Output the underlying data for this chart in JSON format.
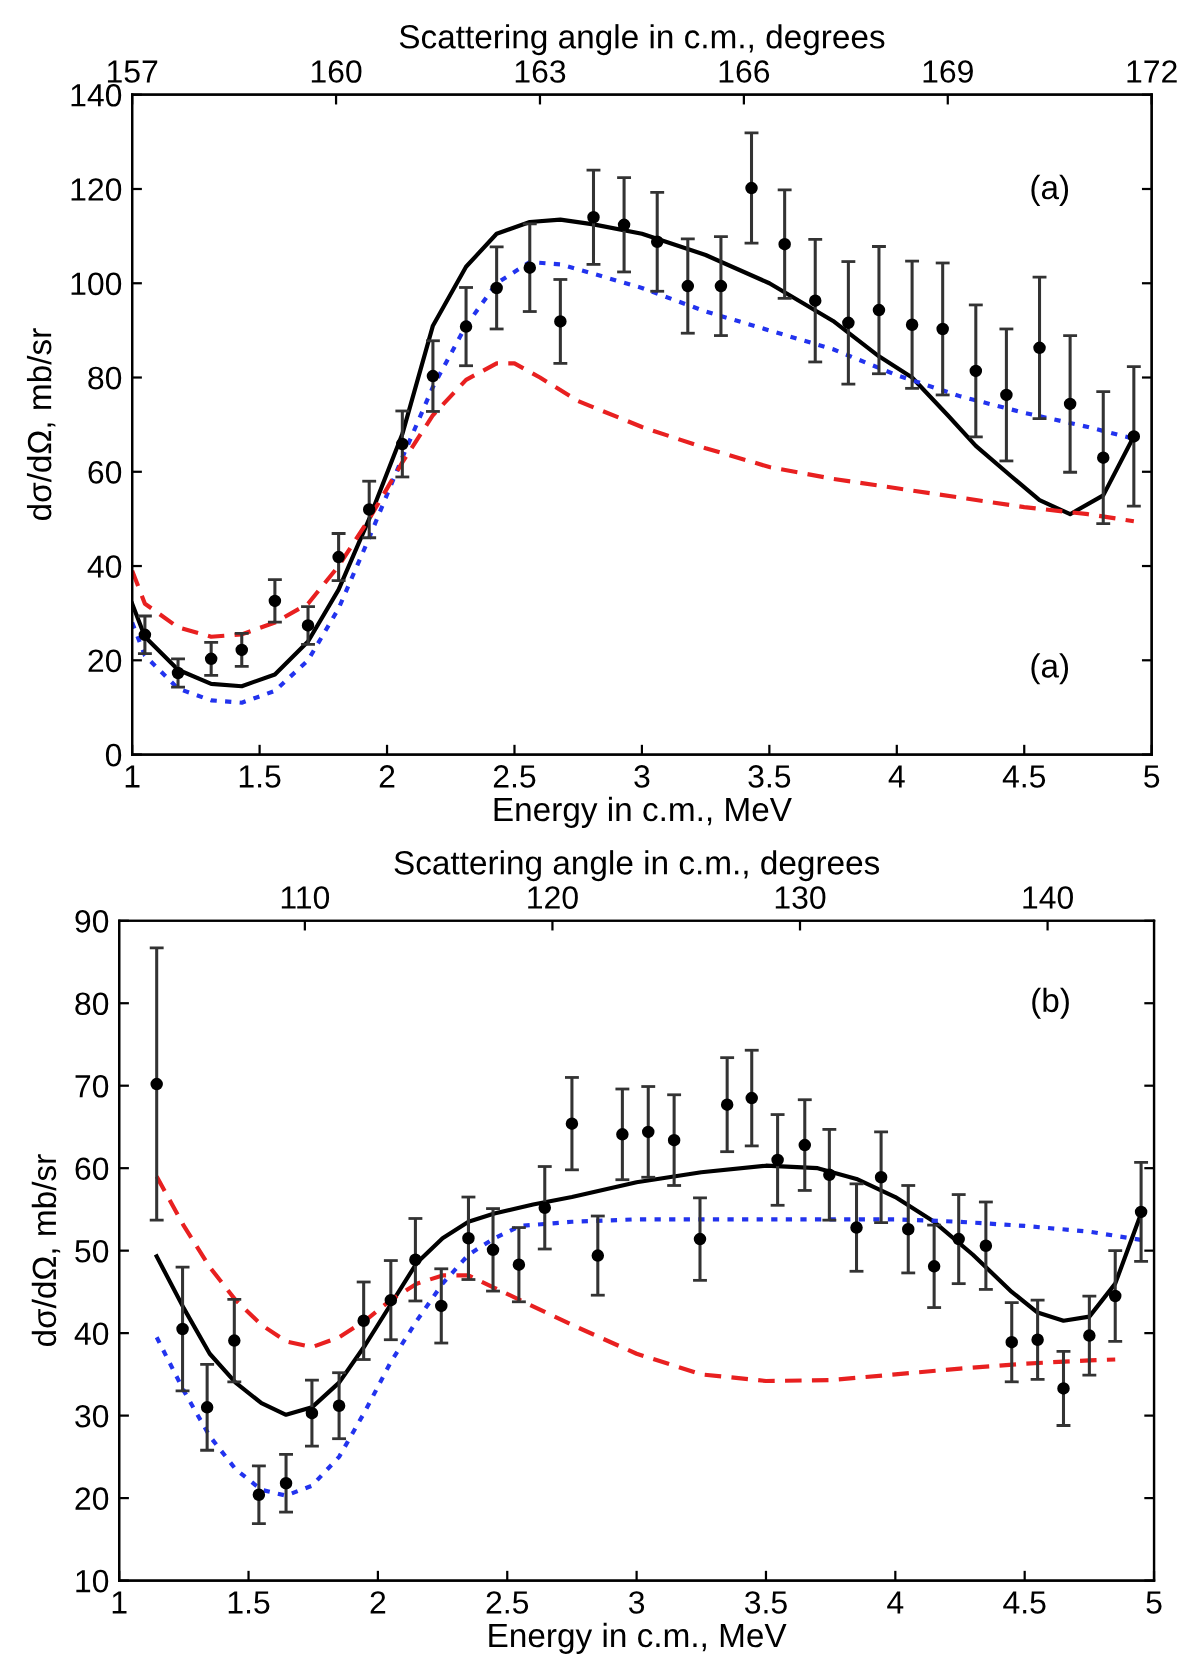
{
  "chart_data": [
    {
      "type": "line",
      "xlabel": "Energy in c.m., MeV",
      "ylabel": "dσ/dΩ, mb/sr",
      "x2label": "Scattering angle in c.m., degrees",
      "xlim": [
        1,
        5
      ],
      "xticks": [
        1,
        1.5,
        2,
        2.5,
        3,
        3.5,
        4,
        4.5,
        5
      ],
      "ylim": [
        0,
        140
      ],
      "yticks": [
        0,
        20,
        40,
        60,
        80,
        100,
        120,
        140
      ],
      "x2lim": [
        157,
        172
      ],
      "x2ticks": [
        157,
        160,
        163,
        166,
        169,
        172
      ],
      "grid": false,
      "legend": false,
      "annotations": [
        "(a)",
        "(a)"
      ],
      "series": [
        {
          "type": "scatter",
          "color": "#000000",
          "marker": "circle",
          "x": [
            1.05,
            1.18,
            1.31,
            1.43,
            1.56,
            1.69,
            1.81,
            1.93,
            2.06,
            2.18,
            2.31,
            2.43,
            2.56,
            2.68,
            2.81,
            2.93,
            3.06,
            3.18,
            3.31,
            3.43,
            3.56,
            3.68,
            3.81,
            3.93,
            4.06,
            4.18,
            4.31,
            4.43,
            4.56,
            4.68,
            4.81,
            4.93
          ],
          "values": [
            25.4,
            17.3,
            20.3,
            22.2,
            32.6,
            27.4,
            41.9,
            52,
            65.9,
            80.3,
            90.8,
            99,
            103.3,
            91.9,
            114,
            112.4,
            108.8,
            99.4,
            99.4,
            120.2,
            108.3,
            96.3,
            91.6,
            94.3,
            91.2,
            90.3,
            81.4,
            76.3,
            86.3,
            74.4,
            63,
            67.5
          ],
          "errors": [
            4,
            3,
            3.5,
            3.5,
            4.5,
            4,
            5,
            6,
            7,
            7.5,
            8.3,
            8.7,
            9.3,
            8.9,
            10,
            10,
            10.5,
            10,
            10.5,
            11.7,
            11.5,
            13,
            13,
            13.5,
            13.5,
            14,
            14,
            14,
            15,
            14.5,
            14,
            14.8
          ]
        },
        {
          "color": "#000000",
          "line_style": "solid",
          "x": [
            1.0,
            1.05,
            1.18,
            1.31,
            1.43,
            1.56,
            1.69,
            1.81,
            1.93,
            2.06,
            2.18,
            2.31,
            2.43,
            2.56,
            2.68,
            2.81,
            3.0,
            3.25,
            3.5,
            3.75,
            3.93,
            4.06,
            4.2,
            4.31,
            4.45,
            4.56,
            4.68,
            4.81,
            4.93
          ],
          "values": [
            32,
            25,
            18,
            15,
            14.5,
            17,
            24,
            35,
            50,
            68,
            91,
            103.5,
            110.5,
            113,
            113.5,
            112.5,
            110.5,
            106,
            100,
            92,
            84.5,
            80,
            72,
            65.5,
            59,
            54,
            51,
            55,
            67.5
          ]
        },
        {
          "color": "#2233ee",
          "line_style": "dotted",
          "x": [
            1.0,
            1.05,
            1.18,
            1.31,
            1.43,
            1.56,
            1.69,
            1.81,
            1.93,
            2.06,
            2.18,
            2.31,
            2.43,
            2.56,
            2.68,
            2.81,
            3.0,
            3.25,
            3.5,
            3.75,
            4.0,
            4.25,
            4.5,
            4.75,
            4.93
          ],
          "values": [
            28,
            21,
            14,
            11.5,
            11,
            13.5,
            20,
            31,
            46,
            63,
            78,
            91,
            100,
            104.5,
            104,
            102,
            99,
            94,
            90,
            86,
            80.5,
            76,
            72.5,
            69.5,
            67
          ]
        },
        {
          "color": "#e82020",
          "line_style": "dashed",
          "x": [
            1.0,
            1.05,
            1.18,
            1.31,
            1.43,
            1.56,
            1.69,
            1.81,
            1.93,
            2.06,
            2.18,
            2.31,
            2.43,
            2.5,
            2.6,
            2.75,
            3.0,
            3.25,
            3.5,
            3.75,
            4.0,
            4.25,
            4.5,
            4.75,
            4.93
          ],
          "values": [
            39,
            32,
            27,
            25,
            25.5,
            28,
            32,
            40,
            50,
            62,
            72,
            79.5,
            83,
            83,
            80,
            75,
            69.5,
            65,
            61,
            58.5,
            56.5,
            54.5,
            52.5,
            51,
            49.5
          ]
        }
      ]
    },
    {
      "type": "line",
      "xlabel": "Energy in c.m., MeV",
      "ylabel": "dσ/dΩ, mb/sr",
      "x2label": "Scattering angle in c.m., degrees",
      "xlim": [
        1,
        5
      ],
      "xticks": [
        1,
        1.5,
        2,
        2.5,
        3,
        3.5,
        4,
        4.5,
        5
      ],
      "ylim": [
        10,
        90
      ],
      "yticks": [
        10,
        20,
        30,
        40,
        50,
        60,
        70,
        80,
        90
      ],
      "x2lim": [
        102.5,
        144.3
      ],
      "x2ticks": [
        110,
        120,
        130,
        140
      ],
      "grid": false,
      "legend": false,
      "annotations": [
        "(b)"
      ],
      "series": [
        {
          "type": "scatter",
          "color": "#000000",
          "marker": "circle",
          "x": [
            1.145,
            1.245,
            1.34,
            1.445,
            1.54,
            1.645,
            1.745,
            1.85,
            1.945,
            2.05,
            2.145,
            2.245,
            2.35,
            2.445,
            2.545,
            2.645,
            2.75,
            2.85,
            2.945,
            3.045,
            3.145,
            3.245,
            3.35,
            3.445,
            3.545,
            3.65,
            3.745,
            3.85,
            3.945,
            4.05,
            4.15,
            4.245,
            4.35,
            4.45,
            4.55,
            4.65,
            4.75,
            4.85,
            4.95
          ],
          "values": [
            70.2,
            40.5,
            31,
            39.1,
            20.4,
            21.8,
            30.3,
            31.2,
            41.5,
            44,
            48.9,
            43.3,
            51.5,
            50.1,
            48.3,
            55.2,
            65.4,
            49.4,
            64.1,
            64.4,
            63.4,
            51.4,
            67.7,
            68.5,
            61,
            62.8,
            59.2,
            52.8,
            58.9,
            52.6,
            48.1,
            51.4,
            50.6,
            38.9,
            39.2,
            33.3,
            39.7,
            44.5,
            54.7
          ],
          "errors": [
            16.5,
            7.5,
            5.2,
            5,
            3.5,
            3.5,
            4,
            4,
            4.7,
            4.8,
            5,
            4.5,
            5,
            5,
            4.5,
            5,
            5.6,
            4.8,
            5.5,
            5.5,
            5.5,
            5,
            5.7,
            5.8,
            5.5,
            5.5,
            5.5,
            5.3,
            5.5,
            5.3,
            5,
            5.4,
            5.3,
            4.8,
            4.8,
            4.5,
            4.8,
            5.5,
            6
          ]
        },
        {
          "color": "#000000",
          "line_style": "solid",
          "x": [
            1.145,
            1.25,
            1.35,
            1.45,
            1.55,
            1.645,
            1.745,
            1.85,
            1.95,
            2.05,
            2.15,
            2.25,
            2.35,
            2.45,
            2.6,
            2.75,
            3.0,
            3.25,
            3.5,
            3.7,
            3.85,
            4.0,
            4.15,
            4.3,
            4.45,
            4.55,
            4.65,
            4.75,
            4.85,
            4.95
          ],
          "values": [
            49.3,
            43,
            37.5,
            34,
            31.5,
            30.1,
            31,
            34,
            38.5,
            43.5,
            48.5,
            51.5,
            53.5,
            54.5,
            55.6,
            56.5,
            58.3,
            59.5,
            60.3,
            60,
            58.7,
            56.5,
            53.5,
            49.5,
            45,
            42.5,
            41.5,
            42,
            46,
            54.5
          ]
        },
        {
          "color": "#2233ee",
          "line_style": "dotted",
          "x": [
            1.145,
            1.25,
            1.35,
            1.45,
            1.55,
            1.645,
            1.745,
            1.85,
            1.95,
            2.05,
            2.15,
            2.25,
            2.35,
            2.45,
            2.55,
            2.75,
            3.0,
            3.5,
            4.0,
            4.25,
            4.5,
            4.75,
            4.95
          ],
          "values": [
            39.5,
            33,
            27.5,
            23.5,
            21,
            20.3,
            21.5,
            25,
            30.5,
            36.5,
            41.5,
            46,
            49.5,
            51.5,
            53,
            53.5,
            53.8,
            53.8,
            53.8,
            53.5,
            53,
            52.3,
            51.3
          ]
        },
        {
          "color": "#e82020",
          "line_style": "dashed",
          "x": [
            1.145,
            1.25,
            1.35,
            1.45,
            1.55,
            1.645,
            1.745,
            1.85,
            1.95,
            2.05,
            2.15,
            2.25,
            2.35,
            2.45,
            2.55,
            2.75,
            3.0,
            3.25,
            3.5,
            3.75,
            4.0,
            4.25,
            4.5,
            4.75,
            4.85
          ],
          "values": [
            59,
            53,
            48,
            44,
            41,
            39,
            38.3,
            39.5,
            41.5,
            44,
            46,
            47,
            47,
            45.5,
            44,
            41,
            37.5,
            35,
            34.2,
            34.3,
            35,
            35.7,
            36.3,
            36.7,
            36.8
          ]
        }
      ]
    }
  ]
}
